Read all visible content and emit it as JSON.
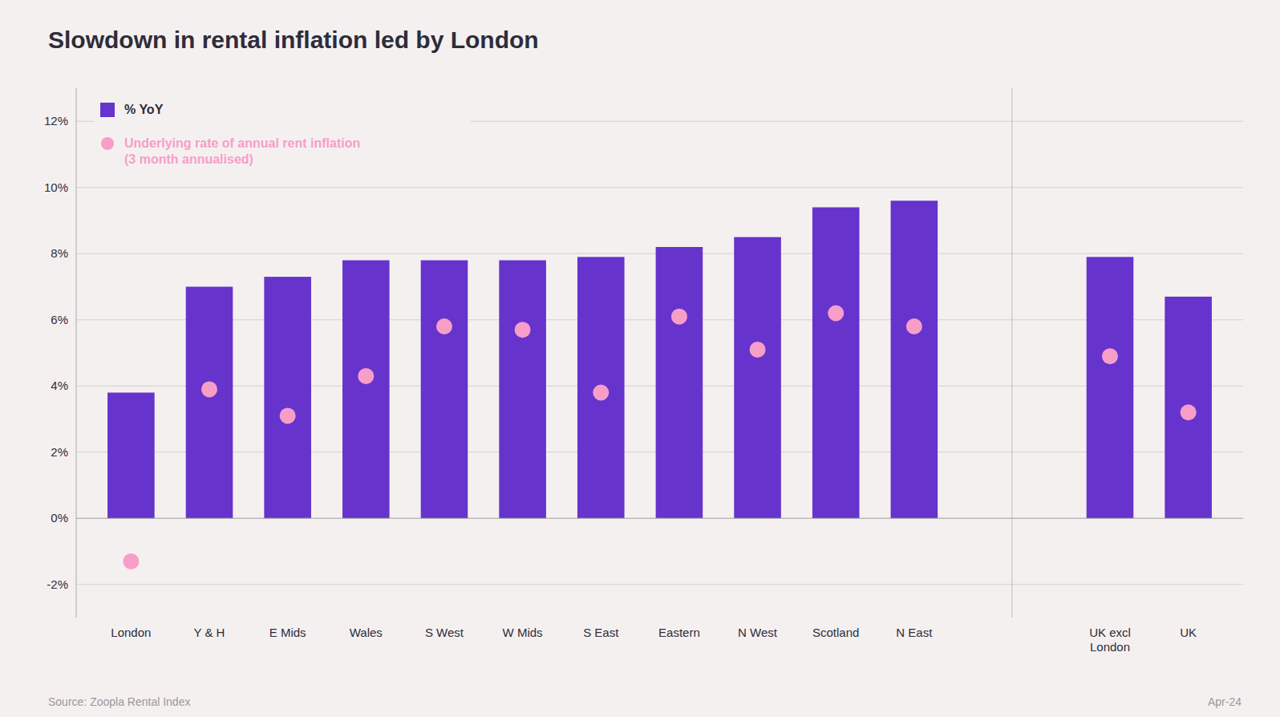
{
  "chart_data": {
    "type": "bar",
    "title": "Slowdown in rental inflation led by London",
    "categories": [
      "London",
      "Y & H",
      "E Mids",
      "Wales",
      "S West",
      "W Mids",
      "S East",
      "Eastern",
      "N West",
      "Scotland",
      "N East",
      "UK excl\nLondon",
      "UK"
    ],
    "series": [
      {
        "name": "% YoY",
        "type": "bar",
        "color": "#6633cc",
        "values": [
          3.8,
          7.0,
          7.3,
          7.8,
          7.8,
          7.8,
          7.9,
          8.2,
          8.5,
          9.4,
          9.6,
          7.9,
          6.7
        ]
      },
      {
        "name": "Underlying rate of annual rent inflation\n(3 month annualised)",
        "type": "scatter",
        "color": "#f79ec8",
        "marker": "circle",
        "values": [
          -1.3,
          3.9,
          3.1,
          4.3,
          5.8,
          5.7,
          3.8,
          6.1,
          5.1,
          6.2,
          5.8,
          4.9,
          3.2
        ]
      }
    ],
    "ylim": [
      -3.0,
      13.0
    ],
    "yticks": [
      {
        "value": -2,
        "label": "-2%"
      },
      {
        "value": 0,
        "label": "0%"
      },
      {
        "value": 2,
        "label": "2%"
      },
      {
        "value": 4,
        "label": "4%"
      },
      {
        "value": 6,
        "label": "6%"
      },
      {
        "value": 8,
        "label": "8%"
      },
      {
        "value": 10,
        "label": "10%"
      },
      {
        "value": 12,
        "label": "12%"
      }
    ],
    "grid": true,
    "legend": "upper left",
    "annotations": [
      "Source: Zoopla Rental Index",
      "Apr-24"
    ]
  }
}
